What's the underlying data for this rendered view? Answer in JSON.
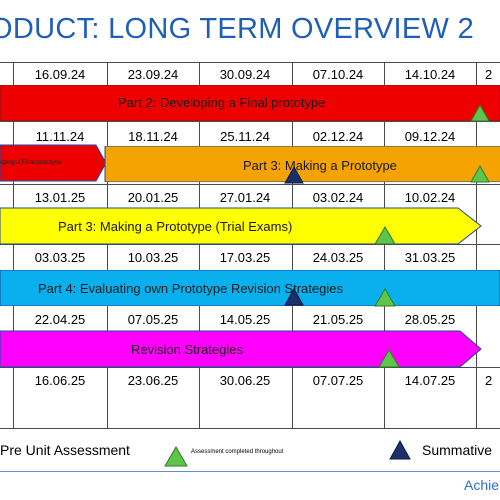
{
  "title": "ODUCT: LONG TERM OVERVIEW 2",
  "weeks": [
    [
      "16.09.24",
      "23.09.24",
      "30.09.24",
      "07.10.24",
      "14.10.24",
      "2"
    ],
    [
      "11.11.24",
      "18.11.24",
      "25.11.24",
      "02.12.24",
      "09.12.24",
      ""
    ],
    [
      "13.01.25",
      "20.01.25",
      "27.01.24",
      "03.02.24",
      "10.02.24",
      ""
    ],
    [
      "03.03.25",
      "10.03.25",
      "17.03.25",
      "24.03.25",
      "31.03.25",
      ""
    ],
    [
      "22.04.25",
      "07.05.25",
      "14.05.25",
      "21.05.25",
      "28.05.25",
      ""
    ],
    [
      "16.06.25",
      "23.06.25",
      "30.06.25",
      "07.07.25",
      "14.07.25",
      "2"
    ]
  ],
  "bars": [
    {
      "label": "Part 2: Developing a Final prototype",
      "color": "#ee0000"
    },
    {
      "label": "Part 3: Making a Prototype",
      "color": "#f5a300"
    },
    {
      "label": "oping a Final prototype",
      "color": "#ee0000"
    },
    {
      "label": "Part 3: Making a Prototype (Trial Exams)",
      "color": "#ffff00"
    },
    {
      "label": "Part 4: Evaluating own Prototype Revision Strategies",
      "color": "#0ab0ee"
    },
    {
      "label": "Revision Strategies",
      "color": "#ff00ff"
    }
  ],
  "legend": {
    "pre_unit": "Pre Unit Assessment",
    "completed": "Assessment completed throughout",
    "summative": "Summative"
  },
  "footer": "Achie",
  "colors": {
    "title": "#1f5fb5",
    "green_marker": "#5ec44a",
    "navy_marker": "#1b2f6b"
  }
}
